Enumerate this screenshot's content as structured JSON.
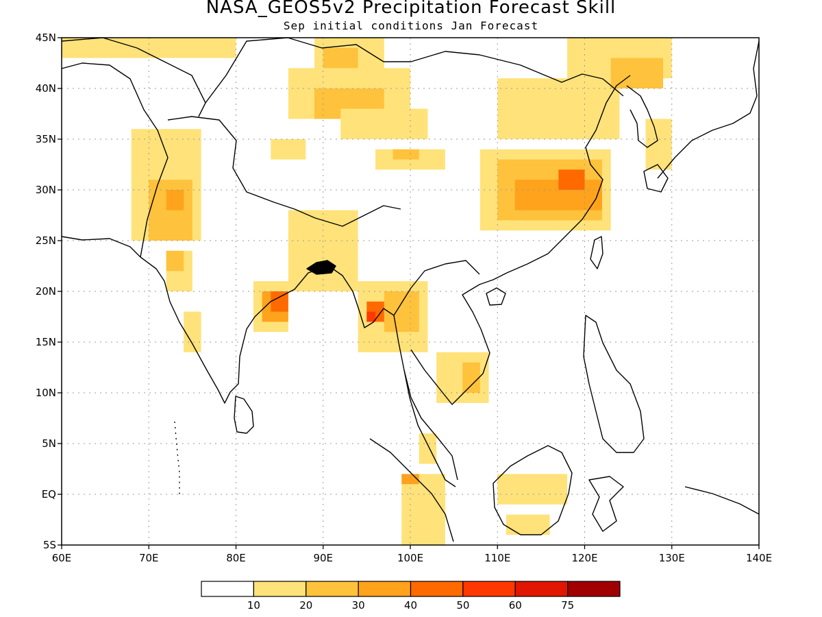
{
  "header": {
    "title": "NASA_GEOS5v2 Precipitation Forecast Skill",
    "subtitle": "Sep initial conditions  Jan Forecast"
  },
  "map": {
    "lon_range": [
      60,
      140
    ],
    "lat_range": [
      -5,
      45
    ],
    "grid": "dotted",
    "x_ticks": [
      {
        "value": 60,
        "label": "60E"
      },
      {
        "value": 70,
        "label": "70E"
      },
      {
        "value": 80,
        "label": "80E"
      },
      {
        "value": 90,
        "label": "90E"
      },
      {
        "value": 100,
        "label": "100E"
      },
      {
        "value": 110,
        "label": "110E"
      },
      {
        "value": 120,
        "label": "120E"
      },
      {
        "value": 130,
        "label": "130E"
      },
      {
        "value": 140,
        "label": "140E"
      }
    ],
    "y_ticks": [
      {
        "value": 45,
        "label": "45N"
      },
      {
        "value": 40,
        "label": "40N"
      },
      {
        "value": 35,
        "label": "35N"
      },
      {
        "value": 30,
        "label": "30N"
      },
      {
        "value": 25,
        "label": "25N"
      },
      {
        "value": 20,
        "label": "20N"
      },
      {
        "value": 15,
        "label": "15N"
      },
      {
        "value": 10,
        "label": "10N"
      },
      {
        "value": 5,
        "label": "5N"
      },
      {
        "value": 0,
        "label": "EQ"
      },
      {
        "value": -5,
        "label": "5S"
      }
    ]
  },
  "legend": {
    "colors": [
      "#ffffff",
      "#ffe27a",
      "#ffc23c",
      "#ffa21c",
      "#ff6a00",
      "#ff3800",
      "#e01600",
      "#a00000"
    ],
    "labels": [
      "10",
      "20",
      "30",
      "40",
      "50",
      "60",
      "75"
    ]
  },
  "skill_regions": [
    {
      "level": 1,
      "lon": 60,
      "lat": 45,
      "w": 20,
      "h": 2
    },
    {
      "level": 1,
      "lon": 89,
      "lat": 45,
      "w": 8,
      "h": 5
    },
    {
      "level": 2,
      "lon": 90,
      "lat": 44,
      "w": 4,
      "h": 2
    },
    {
      "level": 1,
      "lon": 86,
      "lat": 42,
      "w": 14,
      "h": 5
    },
    {
      "level": 2,
      "lon": 89,
      "lat": 40,
      "w": 8,
      "h": 3
    },
    {
      "level": 1,
      "lon": 92,
      "lat": 38,
      "w": 10,
      "h": 3
    },
    {
      "level": 1,
      "lon": 96,
      "lat": 34,
      "w": 8,
      "h": 2
    },
    {
      "level": 2,
      "lon": 98,
      "lat": 34,
      "w": 3,
      "h": 1
    },
    {
      "level": 1,
      "lon": 110,
      "lat": 41,
      "w": 14,
      "h": 6
    },
    {
      "level": 1,
      "lon": 118,
      "lat": 45,
      "w": 12,
      "h": 4
    },
    {
      "level": 2,
      "lon": 123,
      "lat": 43,
      "w": 6,
      "h": 3
    },
    {
      "level": 1,
      "lon": 108,
      "lat": 34,
      "w": 15,
      "h": 8
    },
    {
      "level": 2,
      "lon": 110,
      "lat": 33,
      "w": 12,
      "h": 6
    },
    {
      "level": 3,
      "lon": 112,
      "lat": 31,
      "w": 10,
      "h": 3
    },
    {
      "level": 4,
      "lon": 117,
      "lat": 32,
      "w": 3,
      "h": 2
    },
    {
      "level": 1,
      "lon": 127,
      "lat": 37,
      "w": 3,
      "h": 5
    },
    {
      "level": 1,
      "lon": 68,
      "lat": 36,
      "w": 8,
      "h": 11
    },
    {
      "level": 2,
      "lon": 70,
      "lat": 31,
      "w": 5,
      "h": 6
    },
    {
      "level": 3,
      "lon": 72,
      "lat": 30,
      "w": 2,
      "h": 2
    },
    {
      "level": 1,
      "lon": 84,
      "lat": 35,
      "w": 4,
      "h": 2
    },
    {
      "level": 1,
      "lon": 72,
      "lat": 24,
      "w": 3,
      "h": 4
    },
    {
      "level": 2,
      "lon": 72,
      "lat": 24,
      "w": 2,
      "h": 2
    },
    {
      "level": 1,
      "lon": 86,
      "lat": 28,
      "w": 8,
      "h": 8
    },
    {
      "level": 1,
      "lon": 82,
      "lat": 21,
      "w": 4,
      "h": 5
    },
    {
      "level": 3,
      "lon": 83,
      "lat": 20,
      "w": 3,
      "h": 3
    },
    {
      "level": 4,
      "lon": 84,
      "lat": 20,
      "w": 2,
      "h": 2
    },
    {
      "level": 1,
      "lon": 74,
      "lat": 18,
      "w": 2,
      "h": 4
    },
    {
      "level": 1,
      "lon": 94,
      "lat": 21,
      "w": 8,
      "h": 7
    },
    {
      "level": 2,
      "lon": 97,
      "lat": 20,
      "w": 4,
      "h": 4
    },
    {
      "level": 4,
      "lon": 95,
      "lat": 19,
      "w": 2,
      "h": 2
    },
    {
      "level": 5,
      "lon": 95,
      "lat": 18,
      "w": 1,
      "h": 1
    },
    {
      "level": 1,
      "lon": 103,
      "lat": 14,
      "w": 6,
      "h": 5
    },
    {
      "level": 2,
      "lon": 106,
      "lat": 13,
      "w": 2,
      "h": 3
    },
    {
      "level": 1,
      "lon": 101,
      "lat": 6,
      "w": 2,
      "h": 3
    },
    {
      "level": 1,
      "lon": 99,
      "lat": 2,
      "w": 5,
      "h": 7
    },
    {
      "level": 3,
      "lon": 99,
      "lat": 2,
      "w": 2,
      "h": 1
    },
    {
      "level": 1,
      "lon": 110,
      "lat": 2,
      "w": 8,
      "h": 3
    },
    {
      "level": 1,
      "lon": 111,
      "lat": -2,
      "w": 5,
      "h": 2
    }
  ]
}
